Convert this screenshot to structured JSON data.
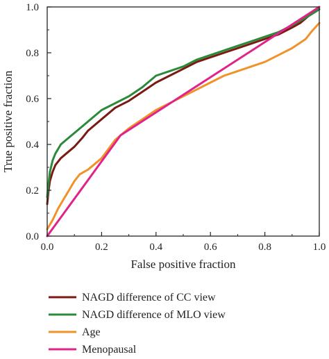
{
  "chart_data": {
    "type": "line",
    "xlabel": "False positive fraction",
    "ylabel": "True positive fraction",
    "xlim": [
      0,
      1
    ],
    "ylim": [
      0,
      1
    ],
    "xticks": [
      "0.0",
      "0.2",
      "0.4",
      "0.6",
      "0.8",
      "1.0"
    ],
    "yticks": [
      "0.0",
      "0.2",
      "0.4",
      "0.6",
      "0.8",
      "1.0"
    ],
    "grid": false,
    "legend_position": "bottom",
    "series": [
      {
        "name": "NAGD difference of CC view",
        "color": "#7a1a12",
        "x": [
          0,
          0.005,
          0.01,
          0.02,
          0.03,
          0.05,
          0.07,
          0.1,
          0.13,
          0.15,
          0.2,
          0.25,
          0.3,
          0.35,
          0.4,
          0.45,
          0.5,
          0.55,
          0.6,
          0.65,
          0.7,
          0.75,
          0.8,
          0.85,
          0.9,
          0.93,
          0.96,
          1.0
        ],
        "y": [
          0.14,
          0.2,
          0.24,
          0.28,
          0.31,
          0.34,
          0.36,
          0.39,
          0.43,
          0.46,
          0.51,
          0.56,
          0.59,
          0.63,
          0.67,
          0.7,
          0.73,
          0.76,
          0.78,
          0.8,
          0.82,
          0.84,
          0.86,
          0.88,
          0.91,
          0.93,
          0.96,
          0.99
        ]
      },
      {
        "name": "NAGD difference of MLO view",
        "color": "#2a8a3a",
        "x": [
          0,
          0.005,
          0.01,
          0.02,
          0.03,
          0.05,
          0.07,
          0.1,
          0.13,
          0.15,
          0.2,
          0.25,
          0.3,
          0.35,
          0.4,
          0.45,
          0.5,
          0.55,
          0.6,
          0.65,
          0.7,
          0.75,
          0.8,
          0.85,
          0.9,
          0.93,
          0.96,
          1.0
        ],
        "y": [
          0.17,
          0.23,
          0.28,
          0.33,
          0.36,
          0.4,
          0.42,
          0.45,
          0.48,
          0.5,
          0.55,
          0.58,
          0.61,
          0.65,
          0.7,
          0.72,
          0.74,
          0.77,
          0.79,
          0.81,
          0.83,
          0.85,
          0.87,
          0.89,
          0.92,
          0.94,
          0.96,
          0.99
        ]
      },
      {
        "name": "Age",
        "color": "#f0922a",
        "x": [
          0,
          0.02,
          0.04,
          0.06,
          0.08,
          0.1,
          0.12,
          0.15,
          0.2,
          0.25,
          0.3,
          0.35,
          0.4,
          0.45,
          0.5,
          0.55,
          0.6,
          0.65,
          0.7,
          0.75,
          0.8,
          0.85,
          0.9,
          0.95,
          0.97,
          1.0
        ],
        "y": [
          0.03,
          0.07,
          0.12,
          0.16,
          0.2,
          0.24,
          0.27,
          0.29,
          0.34,
          0.42,
          0.47,
          0.51,
          0.55,
          0.58,
          0.61,
          0.64,
          0.67,
          0.7,
          0.72,
          0.74,
          0.76,
          0.79,
          0.82,
          0.86,
          0.89,
          0.93
        ]
      },
      {
        "name": "Menopausal",
        "color": "#e0228a",
        "x": [
          0,
          0.27,
          1.0
        ],
        "y": [
          0,
          0.44,
          1.0
        ]
      }
    ]
  }
}
